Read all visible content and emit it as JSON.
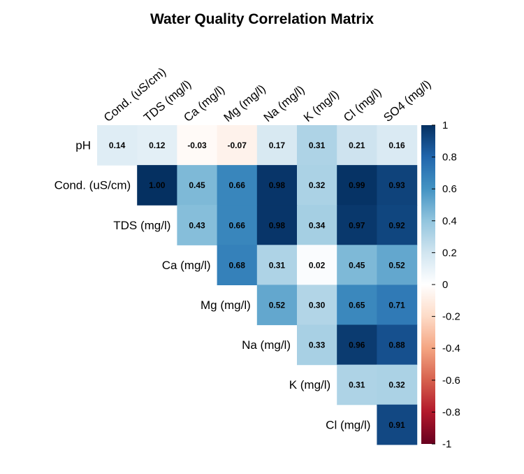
{
  "chart_data": {
    "type": "heatmap",
    "title": "Water Quality Correlation Matrix",
    "row_labels": [
      "pH",
      "Cond. (uS/cm)",
      "TDS (mg/l)",
      "Ca (mg/l)",
      "Mg (mg/l)",
      "Na (mg/l)",
      "K (mg/l)",
      "Cl (mg/l)"
    ],
    "col_labels": [
      "Cond. (uS/cm)",
      "TDS (mg/l)",
      "Ca (mg/l)",
      "Mg (mg/l)",
      "Na (mg/l)",
      "K (mg/l)",
      "Cl (mg/l)",
      "SO4 (mg/l)"
    ],
    "values": [
      [
        0.14,
        0.12,
        -0.03,
        -0.07,
        0.17,
        0.31,
        0.21,
        0.16
      ],
      [
        null,
        1.0,
        0.45,
        0.66,
        0.98,
        0.32,
        0.99,
        0.93
      ],
      [
        null,
        null,
        0.43,
        0.66,
        0.98,
        0.34,
        0.97,
        0.92
      ],
      [
        null,
        null,
        null,
        0.68,
        0.31,
        0.02,
        0.45,
        0.52
      ],
      [
        null,
        null,
        null,
        null,
        0.52,
        0.3,
        0.65,
        0.71
      ],
      [
        null,
        null,
        null,
        null,
        null,
        0.33,
        0.96,
        0.88
      ],
      [
        null,
        null,
        null,
        null,
        null,
        null,
        0.31,
        0.32
      ],
      [
        null,
        null,
        null,
        null,
        null,
        null,
        null,
        0.91
      ]
    ],
    "value_range": [
      -1,
      1
    ],
    "colorbar_ticks": [
      "1",
      "0.8",
      "0.6",
      "0.4",
      "0.2",
      "0",
      "-0.2",
      "-0.4",
      "-0.6",
      "-0.8",
      "-1"
    ],
    "colors": {
      "negative_end": "#67001F",
      "zero": "#FFFFFF",
      "positive_end": "#053061"
    },
    "grid": false,
    "legend": "right"
  }
}
